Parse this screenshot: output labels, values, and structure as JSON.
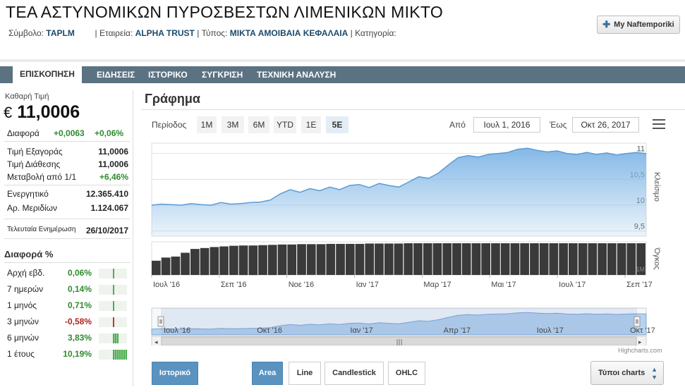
{
  "header": {
    "title": "ΤΕΑ ΑΣΤΥΝΟΜΙΚΩΝ ΠΥΡΟΣΒΕΣΤΩΝ ΛΙΜΕΝΙΚΩΝ ΜΙΚΤΟ",
    "symbol_label": "Σύμβολο:",
    "symbol": "TAPLM",
    "company_label": "| Εταιρεία:",
    "company": "ALPHA TRUST",
    "type_label": "| Τύπος:",
    "type": "ΜΙΚΤΑ ΑΜΟΙΒΑΙΑ ΚΕΦΑΛΑΙΑ",
    "category_label": "| Κατηγορία:",
    "my_button": "My Naftemporiki",
    "my_button_icon": "plus-icon"
  },
  "nav": {
    "items": [
      "ΕΠΙΣΚΟΠΗΣΗ",
      "ΕΙΔΗΣΕΙΣ",
      "ΙΣΤΟΡΙΚΟ",
      "ΣΥΓΚΡΙΣΗ",
      "ΤΕΧΝΙΚΗ ΑΝΑΛΥΣΗ"
    ],
    "active": "ΕΠΙΣΚΟΠΗΣΗ"
  },
  "summary": {
    "net_price_label": "Καθαρή Τιμή",
    "currency": "€",
    "price": "11,0006",
    "diff_label": "Διαφορά",
    "diff": "+0,0063",
    "diff_pct": "+0,06%",
    "rows": [
      {
        "label": "Τιμή Εξαγοράς",
        "value": "11,0006"
      },
      {
        "label": "Τιμή Διάθεσης",
        "value": "11,0006"
      },
      {
        "label": "Μεταβολή από 1/1",
        "value": "+6,46%"
      }
    ],
    "rows2": [
      {
        "label": "Ενεργητικό",
        "value": "12.365.410"
      },
      {
        "label": "Αρ. Μεριδίων",
        "value": "1.124.067"
      }
    ],
    "update_label": "Τελευταία Ενημέρωση",
    "update_value": "26/10/2017"
  },
  "diff_pct_section": {
    "title": "Διαφορά %",
    "rows": [
      {
        "label": "Αρχή εβδ.",
        "value": "0,06%",
        "pct": 0.06
      },
      {
        "label": "7 ημερών",
        "value": "0,14%",
        "pct": 0.14
      },
      {
        "label": "1 μηνός",
        "value": "0,71%",
        "pct": 0.71
      },
      {
        "label": "3 μηνών",
        "value": "-0,58%",
        "pct": -0.58
      },
      {
        "label": "6 μηνών",
        "value": "3,83%",
        "pct": 3.83
      },
      {
        "label": "1 έτους",
        "value": "10,19%",
        "pct": 10.19
      }
    ]
  },
  "graph": {
    "title": "Γράφημα",
    "period_label": "Περίοδος",
    "periods": [
      "1M",
      "3M",
      "6M",
      "YTD",
      "1E",
      "5E"
    ],
    "selected_period": "5E",
    "from_label": "Από",
    "from": "Ιουλ 1, 2016",
    "to_label": "Έως",
    "to": "Οκτ 26, 2017",
    "menu_icon": "hamburger-icon",
    "credit": "Highcharts.com"
  },
  "chart_data": {
    "type": "area",
    "price_axis_label": "Κλείσιμο",
    "volume_axis_label": "Όγκος",
    "y_ticks": [
      "11",
      "10,5",
      "10",
      "9,5"
    ],
    "ylim": [
      9.4,
      11.2
    ],
    "x_ticks": [
      "Ιουλ '16",
      "Σεπ '16",
      "Νοε '16",
      "Ιαν '17",
      "Μαρ '17",
      "Μαι '17",
      "Ιουλ '17",
      "Σεπ '17"
    ],
    "navigator_ticks": [
      "Ιουλ '16",
      "Οκτ '16",
      "Ιαν '17",
      "Απρ '17",
      "Ιουλ '17",
      "Οκτ '17"
    ],
    "volume_tick": "1M",
    "price_series": [
      10.0,
      10.02,
      10.01,
      10.0,
      10.03,
      10.01,
      10.0,
      10.05,
      10.02,
      10.03,
      10.05,
      10.06,
      10.1,
      10.22,
      10.3,
      10.25,
      10.32,
      10.28,
      10.35,
      10.3,
      10.38,
      10.4,
      10.34,
      10.42,
      10.38,
      10.35,
      10.45,
      10.55,
      10.52,
      10.62,
      10.78,
      10.92,
      10.96,
      10.93,
      10.98,
      11.0,
      11.02,
      11.08,
      11.1,
      11.06,
      11.03,
      11.05,
      11.0,
      10.98,
      11.02,
      10.98,
      11.01,
      10.97,
      11.0,
      11.02,
      11.0
    ],
    "volume_series": [
      0.45,
      0.55,
      0.58,
      0.7,
      0.82,
      0.85,
      0.88,
      0.9,
      0.92,
      0.93,
      0.93,
      0.94,
      0.95,
      0.96,
      0.96,
      0.97,
      0.97,
      0.97,
      0.98,
      0.98,
      0.98,
      0.98,
      0.99,
      0.99,
      0.99,
      0.99,
      1.0,
      1.0,
      1.0,
      1.0,
      1.0,
      1.0,
      1.0,
      1.0,
      1.0,
      1.0,
      1.0,
      1.0,
      1.0,
      1.0,
      1.0,
      1.0,
      1.0,
      1.0,
      1.0,
      1.0,
      1.0,
      1.0,
      1.0,
      1.0,
      1.0
    ],
    "navigator_handle_icon": "grip-icon",
    "scroll_icon": "scrollbar-grip-icon"
  },
  "buttons": {
    "history": "Ιστορικό",
    "area": "Area",
    "line": "Line",
    "candlestick": "Candlestick",
    "ohlc": "OHLC",
    "chart_types": "Τύποι charts",
    "chart_types_icon": "updown-arrow-icon"
  },
  "colors": {
    "nav_bg": "#5b7282",
    "area_fill": "#7eb5e6",
    "volume": "#3a3a3a",
    "positive": "#2e8b2e",
    "negative": "#b22222",
    "button_blue": "#5a93c0"
  }
}
